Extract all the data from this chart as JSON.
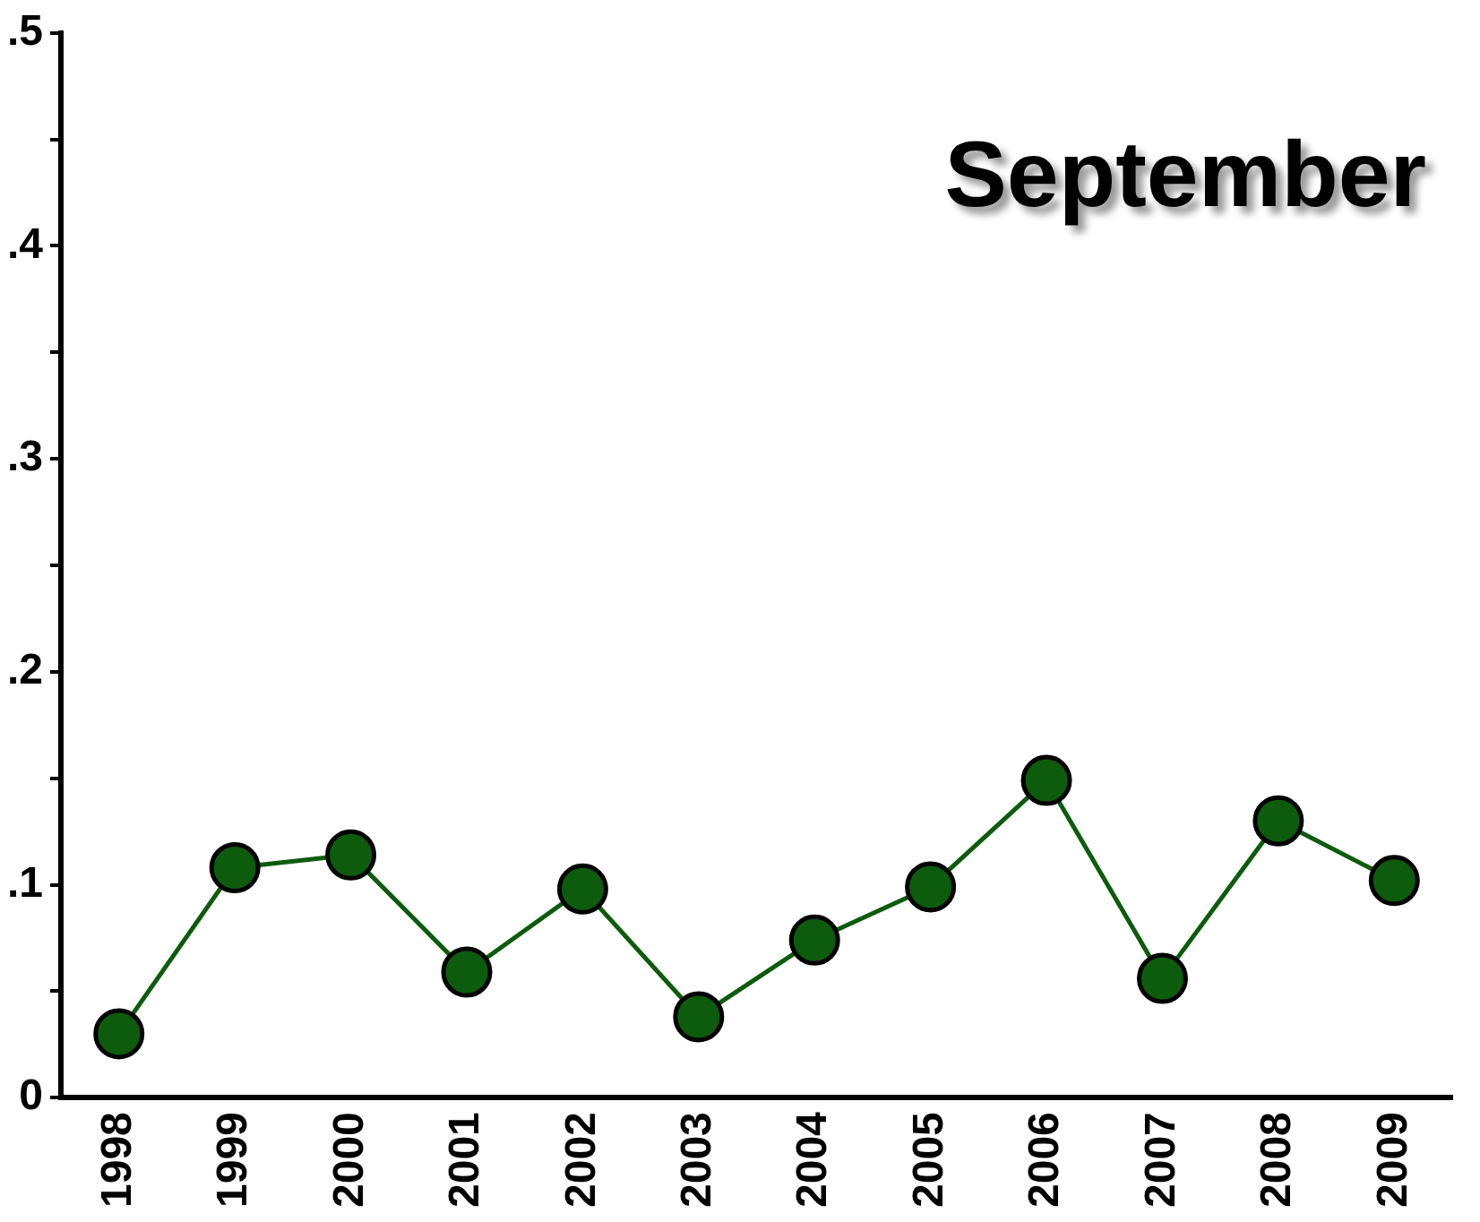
{
  "chart_data": {
    "type": "line",
    "title": "September",
    "categories": [
      "1998",
      "1999",
      "2000",
      "2001",
      "2002",
      "2003",
      "2004",
      "2005",
      "2006",
      "2007",
      "2008",
      "2009"
    ],
    "series": [
      {
        "color": "#0d5c0d",
        "values": [
          0.03,
          0.108,
          0.114,
          0.059,
          0.098,
          0.038,
          0.074,
          0.099,
          0.149,
          0.056,
          0.13,
          0.102
        ]
      }
    ],
    "ylim": [
      0,
      0.5
    ],
    "yticks": [
      {
        "value": 0,
        "label": "0"
      },
      {
        "value": 0.05,
        "label": null
      },
      {
        "value": 0.1,
        "label": ".1"
      },
      {
        "value": 0.15,
        "label": null
      },
      {
        "value": 0.2,
        "label": ".2"
      },
      {
        "value": 0.25,
        "label": null
      },
      {
        "value": 0.3,
        "label": ".3"
      },
      {
        "value": 0.35,
        "label": null
      },
      {
        "value": 0.4,
        "label": ".4"
      },
      {
        "value": 0.45,
        "label": null
      },
      {
        "value": 0.5,
        "label": ".5"
      }
    ],
    "grid": false,
    "legend": false,
    "marker": "circle",
    "line_style": "solid"
  }
}
